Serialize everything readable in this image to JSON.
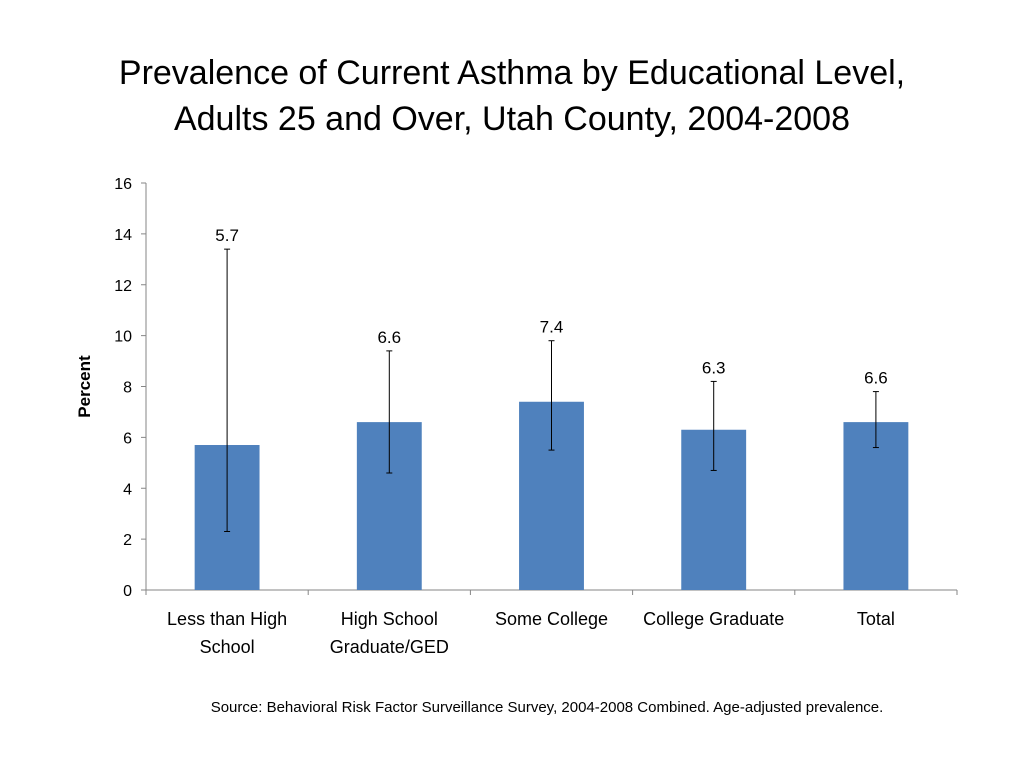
{
  "title": {
    "line1": "Prevalence of Current Asthma by Educational Level,",
    "line2": "Adults 25 and Over, Utah County, 2004-2008"
  },
  "source": "Source: Behavioral Risk Factor Surveillance Survey, 2004-2008 Combined. Age-adjusted prevalence.",
  "colors": {
    "bar": "#4f81bd",
    "axis": "#868686",
    "error_bar": "#000000"
  },
  "chart_data": {
    "type": "bar",
    "title": "Prevalence of Current Asthma by Educational Level, Adults 25 and Over, Utah County, 2004-2008",
    "xlabel": "",
    "ylabel": "Percent",
    "ylim": [
      0,
      16
    ],
    "yticks": [
      0,
      2,
      4,
      6,
      8,
      10,
      12,
      14,
      16
    ],
    "grid": false,
    "legend": "none",
    "categories": [
      [
        "Less than High",
        "School"
      ],
      [
        "High School",
        "Graduate/GED"
      ],
      [
        "Some College"
      ],
      [
        "College Graduate"
      ],
      [
        "Total"
      ]
    ],
    "values": [
      5.7,
      6.6,
      7.4,
      6.3,
      6.6
    ],
    "data_labels": [
      "5.7",
      "6.6",
      "7.4",
      "6.3",
      "6.6"
    ],
    "error_low": [
      2.3,
      4.6,
      5.5,
      4.7,
      5.6
    ],
    "error_high": [
      13.4,
      9.4,
      9.8,
      8.2,
      7.8
    ]
  }
}
